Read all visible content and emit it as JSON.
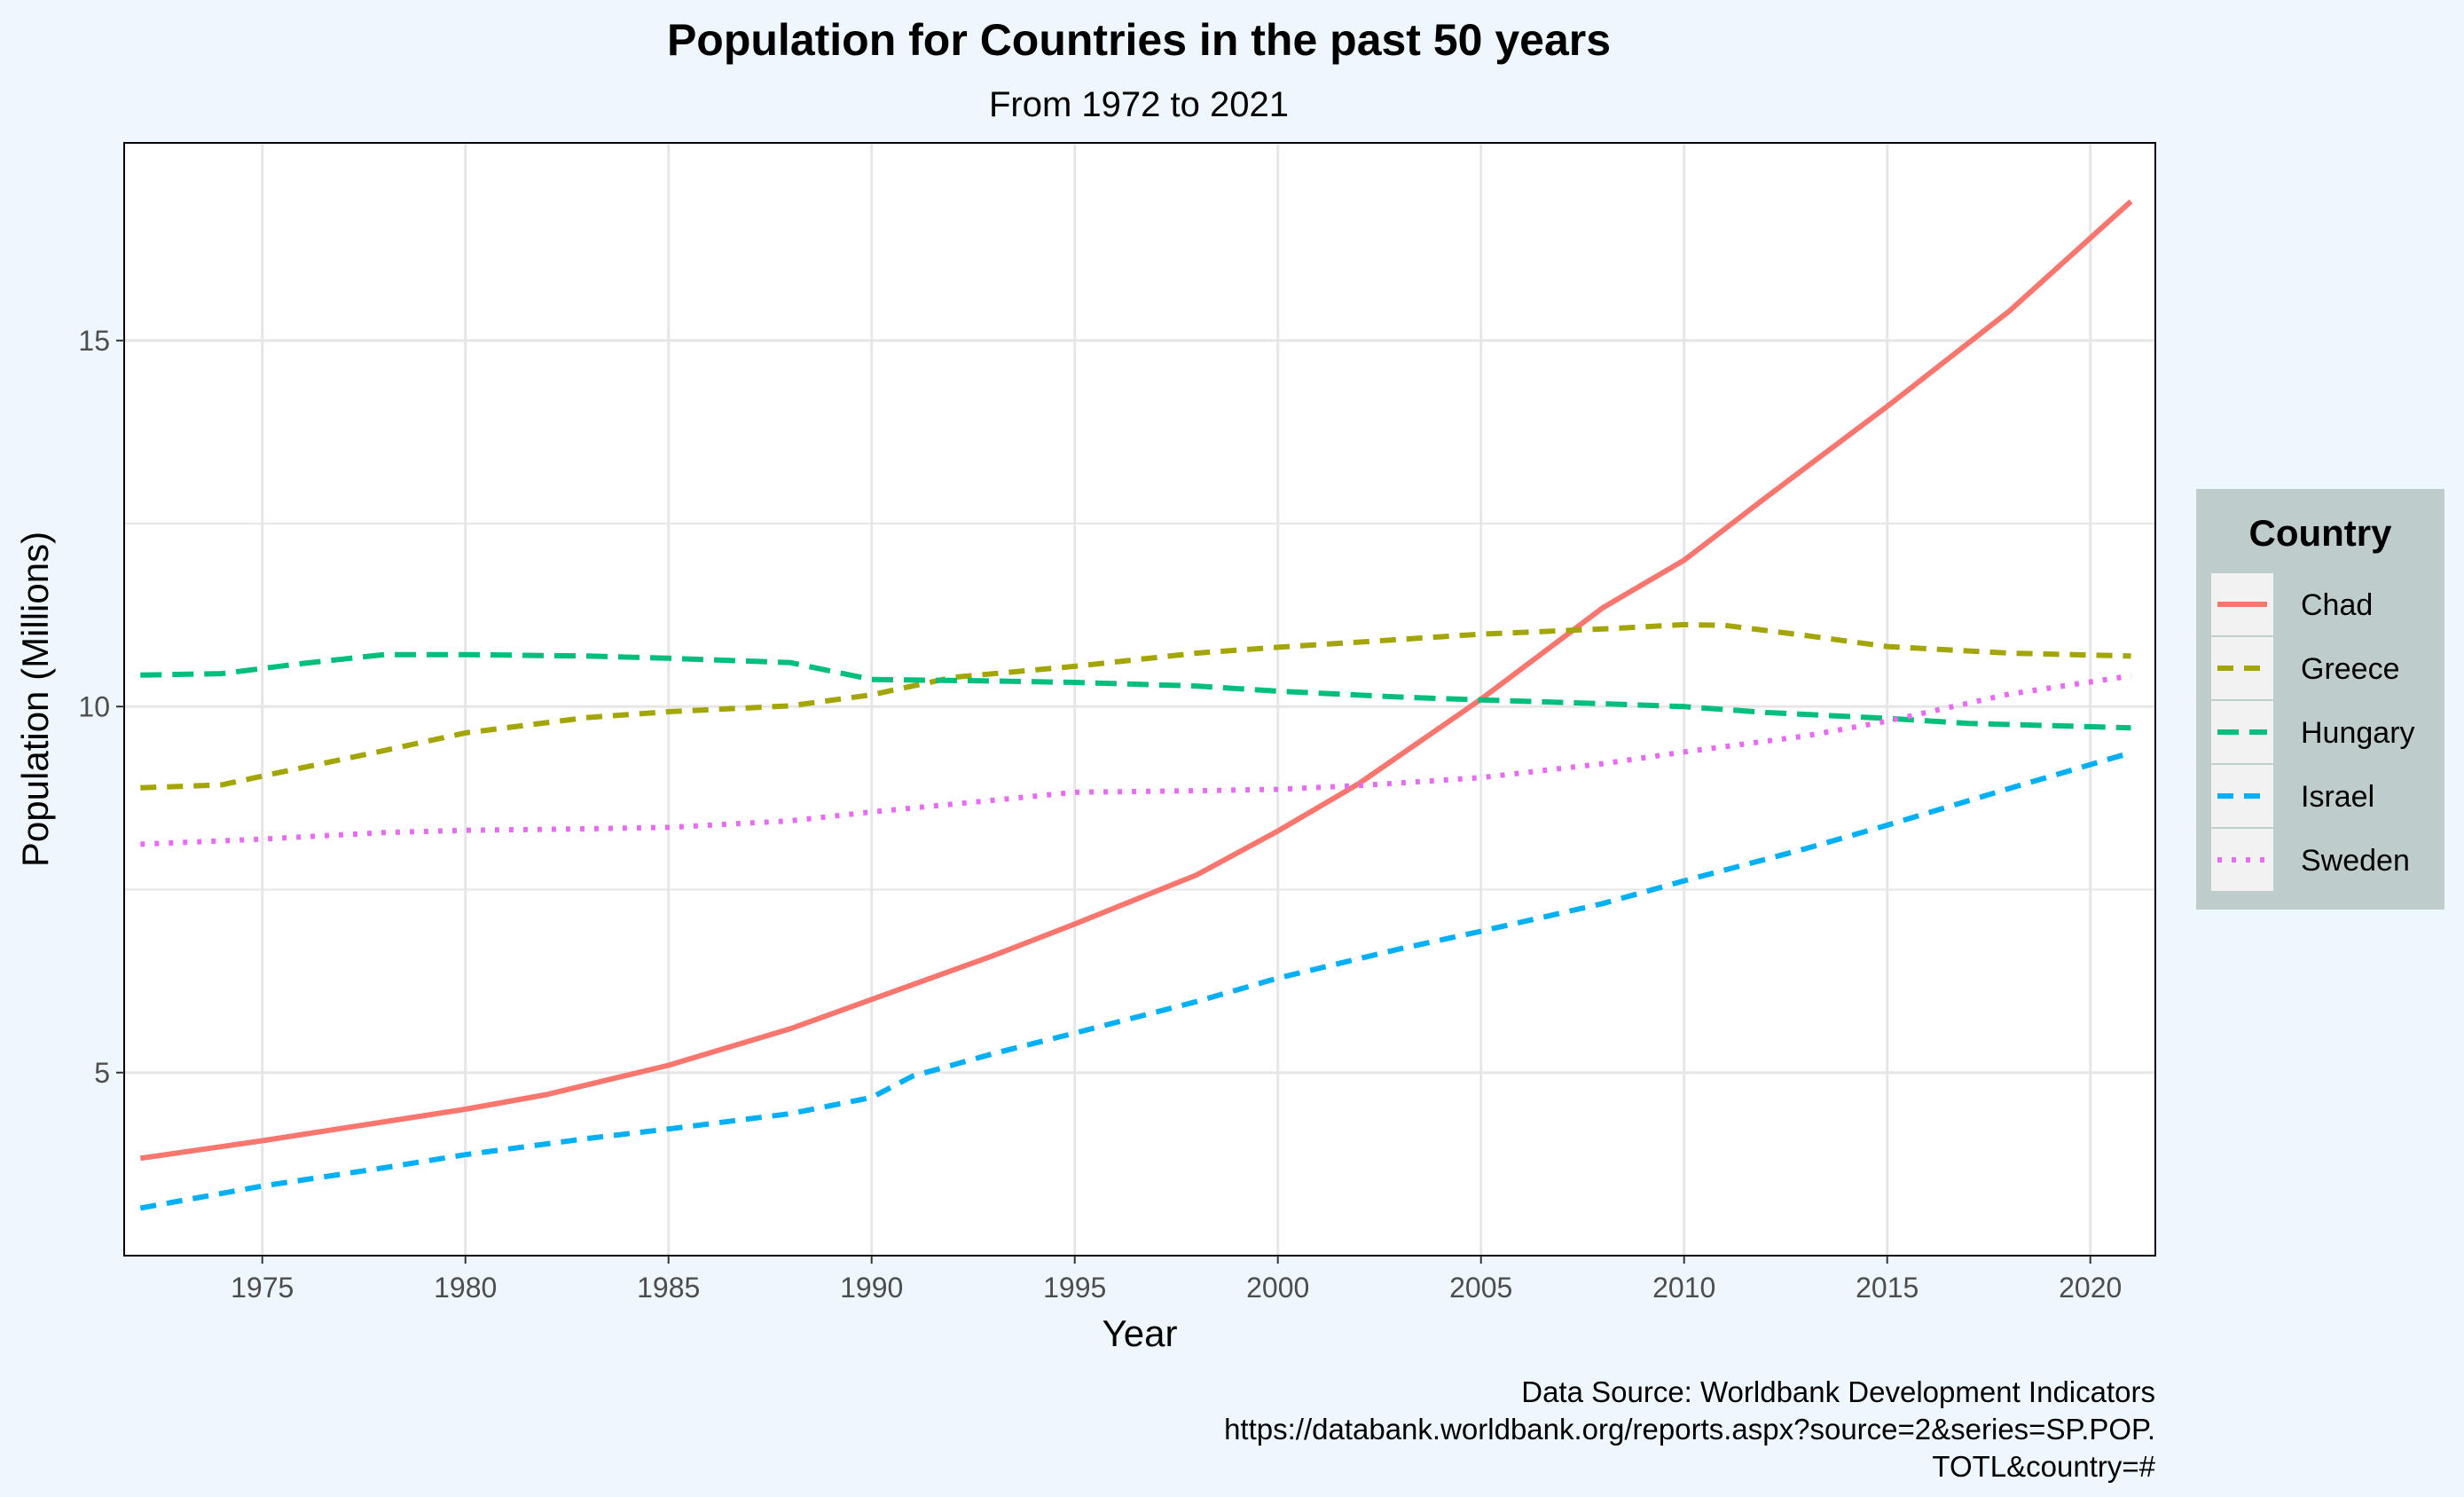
{
  "colors": {
    "page_background": "#EFF7FE",
    "panel_background": "#FFFFFF",
    "grid": "#E6E6E6",
    "legend_background": "#BFCCCC",
    "legend_key_background": "#F2F2F2"
  },
  "chart_data": {
    "type": "line",
    "title": "Population for Countries in the past 50 years",
    "subtitle": "From 1972 to 2021",
    "xlabel": "Year",
    "ylabel": "Population (Millions)",
    "xlim": [
      1971.6,
      2021.6
    ],
    "ylim": [
      2.5,
      17.7
    ],
    "x_ticks": [
      1975,
      1980,
      1985,
      1990,
      1995,
      2000,
      2005,
      2010,
      2015,
      2020
    ],
    "y_ticks": [
      5,
      10,
      15
    ],
    "y_minor": [
      7.5,
      12.5
    ],
    "grid": true,
    "legend": {
      "title": "Country",
      "position": "right"
    },
    "caption": [
      "Data Source: Worldbank Development Indicators",
      "https://databank.worldbank.org/reports.aspx?source=2&series=SP.POP.",
      "TOTL&country=#"
    ],
    "series": [
      {
        "name": "Chad",
        "color": "#F8766D",
        "line_style": "solid",
        "points": [
          [
            1972,
            3.83
          ],
          [
            1975,
            4.07
          ],
          [
            1980,
            4.5
          ],
          [
            1982,
            4.7
          ],
          [
            1985,
            5.1
          ],
          [
            1988,
            5.6
          ],
          [
            1990,
            6.0
          ],
          [
            1993,
            6.6
          ],
          [
            1995,
            7.03
          ],
          [
            1998,
            7.7
          ],
          [
            2000,
            8.3
          ],
          [
            2002,
            8.95
          ],
          [
            2005,
            10.1
          ],
          [
            2008,
            11.35
          ],
          [
            2010,
            12.0
          ],
          [
            2012,
            12.85
          ],
          [
            2015,
            14.1
          ],
          [
            2018,
            15.4
          ],
          [
            2021,
            16.9
          ]
        ]
      },
      {
        "name": "Greece",
        "color": "#A3A500",
        "line_style": "dashed",
        "points": [
          [
            1972,
            8.89
          ],
          [
            1974,
            8.93
          ],
          [
            1975,
            9.05
          ],
          [
            1978,
            9.4
          ],
          [
            1980,
            9.64
          ],
          [
            1983,
            9.85
          ],
          [
            1985,
            9.93
          ],
          [
            1988,
            10.01
          ],
          [
            1990,
            10.16
          ],
          [
            1992,
            10.4
          ],
          [
            1995,
            10.55
          ],
          [
            1998,
            10.73
          ],
          [
            2000,
            10.81
          ],
          [
            2002,
            10.88
          ],
          [
            2005,
            10.99
          ],
          [
            2008,
            11.06
          ],
          [
            2010,
            11.12
          ],
          [
            2011,
            11.11
          ],
          [
            2013,
            10.97
          ],
          [
            2015,
            10.82
          ],
          [
            2018,
            10.73
          ],
          [
            2021,
            10.69
          ]
        ]
      },
      {
        "name": "Hungary",
        "color": "#00BF7D",
        "line_style": "longdash",
        "points": [
          [
            1972,
            10.43
          ],
          [
            1974,
            10.45
          ],
          [
            1976,
            10.59
          ],
          [
            1978,
            10.71
          ],
          [
            1980,
            10.71
          ],
          [
            1983,
            10.69
          ],
          [
            1985,
            10.66
          ],
          [
            1988,
            10.6
          ],
          [
            1990,
            10.37
          ],
          [
            1993,
            10.35
          ],
          [
            1995,
            10.33
          ],
          [
            1998,
            10.28
          ],
          [
            2000,
            10.21
          ],
          [
            2003,
            10.13
          ],
          [
            2005,
            10.09
          ],
          [
            2008,
            10.04
          ],
          [
            2010,
            10.0
          ],
          [
            2012,
            9.92
          ],
          [
            2015,
            9.84
          ],
          [
            2017,
            9.77
          ],
          [
            2021,
            9.71
          ]
        ]
      },
      {
        "name": "Israel",
        "color": "#00B0F6",
        "line_style": "dashed",
        "points": [
          [
            1972,
            3.15
          ],
          [
            1975,
            3.45
          ],
          [
            1978,
            3.7
          ],
          [
            1980,
            3.88
          ],
          [
            1983,
            4.1
          ],
          [
            1985,
            4.23
          ],
          [
            1988,
            4.44
          ],
          [
            1990,
            4.66
          ],
          [
            1991,
            4.95
          ],
          [
            1993,
            5.26
          ],
          [
            1995,
            5.54
          ],
          [
            1998,
            5.97
          ],
          [
            2000,
            6.29
          ],
          [
            2003,
            6.69
          ],
          [
            2005,
            6.93
          ],
          [
            2008,
            7.31
          ],
          [
            2010,
            7.62
          ],
          [
            2013,
            8.06
          ],
          [
            2015,
            8.38
          ],
          [
            2018,
            8.88
          ],
          [
            2021,
            9.37
          ]
        ]
      },
      {
        "name": "Sweden",
        "color": "#E76BF3",
        "line_style": "dotted",
        "points": [
          [
            1972,
            8.12
          ],
          [
            1975,
            8.19
          ],
          [
            1978,
            8.28
          ],
          [
            1980,
            8.31
          ],
          [
            1983,
            8.33
          ],
          [
            1985,
            8.35
          ],
          [
            1988,
            8.44
          ],
          [
            1990,
            8.56
          ],
          [
            1993,
            8.72
          ],
          [
            1995,
            8.83
          ],
          [
            1998,
            8.85
          ],
          [
            2000,
            8.87
          ],
          [
            2002,
            8.92
          ],
          [
            2005,
            9.03
          ],
          [
            2008,
            9.22
          ],
          [
            2010,
            9.38
          ],
          [
            2013,
            9.6
          ],
          [
            2015,
            9.8
          ],
          [
            2018,
            10.17
          ],
          [
            2021,
            10.42
          ]
        ]
      }
    ]
  }
}
